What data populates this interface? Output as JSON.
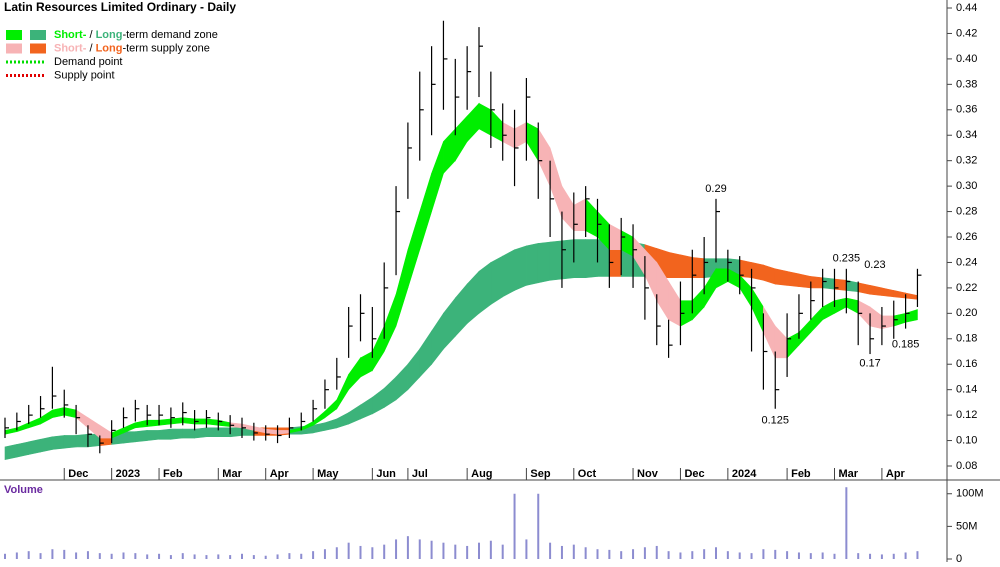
{
  "chart_data": {
    "type": "hlc",
    "title": "Latin Resources Limited Ordinary - Daily",
    "categories": [
      null,
      null,
      null,
      null,
      null,
      "Dec",
      null,
      null,
      null,
      "2023",
      null,
      null,
      null,
      "Feb",
      null,
      null,
      null,
      null,
      "Mar",
      null,
      null,
      null,
      "Apr",
      null,
      null,
      null,
      "May",
      null,
      null,
      null,
      null,
      "Jun",
      null,
      null,
      "Jul",
      null,
      null,
      null,
      null,
      "Aug",
      null,
      null,
      null,
      null,
      "Sep",
      null,
      null,
      null,
      "Oct",
      null,
      null,
      null,
      null,
      "Nov",
      null,
      null,
      null,
      "Dec",
      null,
      null,
      null,
      "2024",
      null,
      null,
      null,
      null,
      "Feb",
      null,
      null,
      null,
      "Mar",
      null,
      null,
      null,
      "Apr",
      null,
      null,
      null
    ],
    "high": [
      0.118,
      0.122,
      0.128,
      0.135,
      0.158,
      0.14,
      0.128,
      0.112,
      0.104,
      0.116,
      0.126,
      0.132,
      0.128,
      0.128,
      0.126,
      0.13,
      0.124,
      0.124,
      0.122,
      0.12,
      0.118,
      0.114,
      0.112,
      0.112,
      0.118,
      0.122,
      0.132,
      0.148,
      0.165,
      0.205,
      0.215,
      0.205,
      0.24,
      0.3,
      0.35,
      0.39,
      0.41,
      0.43,
      0.4,
      0.41,
      0.425,
      0.39,
      0.365,
      0.36,
      0.385,
      0.35,
      0.32,
      0.28,
      0.295,
      0.3,
      0.29,
      0.27,
      0.275,
      0.27,
      0.245,
      0.215,
      0.195,
      0.225,
      0.25,
      0.26,
      0.29,
      0.25,
      0.245,
      0.235,
      0.2,
      0.17,
      0.2,
      0.215,
      0.225,
      0.235,
      0.235,
      0.235,
      0.225,
      0.2,
      0.205,
      0.21,
      0.215,
      0.235
    ],
    "low": [
      0.102,
      0.108,
      0.113,
      0.118,
      0.125,
      0.118,
      0.105,
      0.095,
      0.09,
      0.098,
      0.11,
      0.115,
      0.112,
      0.112,
      0.11,
      0.112,
      0.108,
      0.11,
      0.108,
      0.105,
      0.102,
      0.1,
      0.1,
      0.098,
      0.102,
      0.108,
      0.115,
      0.125,
      0.14,
      0.165,
      0.178,
      0.165,
      0.18,
      0.23,
      0.29,
      0.32,
      0.34,
      0.36,
      0.34,
      0.36,
      0.37,
      0.33,
      0.32,
      0.3,
      0.32,
      0.29,
      0.26,
      0.22,
      0.24,
      0.26,
      0.24,
      0.22,
      0.23,
      0.22,
      0.195,
      0.175,
      0.165,
      0.175,
      0.2,
      0.215,
      0.24,
      0.225,
      0.215,
      0.17,
      0.14,
      0.125,
      0.15,
      0.18,
      0.195,
      0.205,
      0.205,
      0.2,
      0.175,
      0.168,
      0.175,
      0.18,
      0.188,
      0.205
    ],
    "close": [
      0.11,
      0.115,
      0.12,
      0.125,
      0.135,
      0.128,
      0.118,
      0.105,
      0.098,
      0.108,
      0.118,
      0.125,
      0.12,
      0.12,
      0.118,
      0.122,
      0.115,
      0.118,
      0.115,
      0.112,
      0.11,
      0.106,
      0.105,
      0.104,
      0.11,
      0.115,
      0.125,
      0.14,
      0.15,
      0.19,
      0.2,
      0.18,
      0.22,
      0.28,
      0.33,
      0.36,
      0.38,
      0.4,
      0.37,
      0.39,
      0.41,
      0.36,
      0.34,
      0.33,
      0.37,
      0.32,
      0.29,
      0.25,
      0.27,
      0.29,
      0.27,
      0.24,
      0.26,
      0.25,
      0.22,
      0.19,
      0.175,
      0.2,
      0.23,
      0.24,
      0.28,
      0.24,
      0.23,
      0.22,
      0.17,
      0.14,
      0.18,
      0.2,
      0.21,
      0.225,
      0.22,
      0.225,
      0.2,
      0.18,
      0.19,
      0.195,
      0.2,
      0.23
    ],
    "short_zone_lower": [
      0.105,
      0.107,
      0.11,
      0.113,
      0.118,
      0.12,
      0.118,
      0.11,
      0.102,
      0.102,
      0.106,
      0.11,
      0.111,
      0.112,
      0.113,
      0.114,
      0.113,
      0.113,
      0.112,
      0.111,
      0.11,
      0.108,
      0.106,
      0.105,
      0.106,
      0.108,
      0.112,
      0.118,
      0.125,
      0.14,
      0.15,
      0.155,
      0.17,
      0.19,
      0.22,
      0.25,
      0.28,
      0.31,
      0.32,
      0.335,
      0.345,
      0.34,
      0.335,
      0.33,
      0.335,
      0.32,
      0.3,
      0.275,
      0.265,
      0.265,
      0.26,
      0.25,
      0.25,
      0.245,
      0.23,
      0.21,
      0.195,
      0.19,
      0.195,
      0.205,
      0.22,
      0.225,
      0.22,
      0.205,
      0.185,
      0.165,
      0.165,
      0.175,
      0.185,
      0.195,
      0.2,
      0.205,
      0.2,
      0.19,
      0.188,
      0.19,
      0.193,
      0.195
    ],
    "short_zone_upper": [
      0.108,
      0.11,
      0.114,
      0.118,
      0.124,
      0.126,
      0.124,
      0.118,
      0.112,
      0.106,
      0.11,
      0.114,
      0.116,
      0.116,
      0.117,
      0.118,
      0.117,
      0.117,
      0.116,
      0.114,
      0.113,
      0.111,
      0.109,
      0.108,
      0.108,
      0.11,
      0.115,
      0.123,
      0.132,
      0.152,
      0.165,
      0.17,
      0.19,
      0.215,
      0.25,
      0.28,
      0.31,
      0.335,
      0.345,
      0.355,
      0.365,
      0.36,
      0.35,
      0.345,
      0.35,
      0.345,
      0.33,
      0.3,
      0.285,
      0.29,
      0.28,
      0.27,
      0.265,
      0.26,
      0.25,
      0.24,
      0.225,
      0.21,
      0.21,
      0.22,
      0.235,
      0.235,
      0.23,
      0.22,
      0.205,
      0.19,
      0.18,
      0.185,
      0.195,
      0.205,
      0.21,
      0.212,
      0.21,
      0.205,
      0.198,
      0.198,
      0.2,
      0.203
    ],
    "long_zone_lower": [
      0.085,
      0.087,
      0.089,
      0.091,
      0.093,
      0.094,
      0.095,
      0.095,
      0.096,
      0.097,
      0.098,
      0.099,
      0.1,
      0.101,
      0.101,
      0.102,
      0.102,
      0.103,
      0.103,
      0.103,
      0.104,
      0.104,
      0.104,
      0.104,
      0.105,
      0.105,
      0.106,
      0.108,
      0.11,
      0.113,
      0.117,
      0.121,
      0.126,
      0.132,
      0.14,
      0.15,
      0.16,
      0.172,
      0.182,
      0.192,
      0.2,
      0.207,
      0.213,
      0.218,
      0.222,
      0.224,
      0.226,
      0.227,
      0.228,
      0.228,
      0.229,
      0.229,
      0.229,
      0.229,
      0.229,
      0.228,
      0.228,
      0.228,
      0.228,
      0.228,
      0.229,
      0.229,
      0.229,
      0.228,
      0.226,
      0.223,
      0.222,
      0.221,
      0.22,
      0.22,
      0.219,
      0.218,
      0.217,
      0.215,
      0.214,
      0.213,
      0.212,
      0.211
    ],
    "long_zone_upper": [
      0.095,
      0.097,
      0.099,
      0.101,
      0.103,
      0.104,
      0.104,
      0.105,
      0.105,
      0.106,
      0.107,
      0.107,
      0.108,
      0.108,
      0.109,
      0.109,
      0.109,
      0.11,
      0.11,
      0.11,
      0.11,
      0.11,
      0.11,
      0.11,
      0.11,
      0.111,
      0.112,
      0.114,
      0.117,
      0.122,
      0.128,
      0.134,
      0.141,
      0.15,
      0.16,
      0.172,
      0.186,
      0.2,
      0.212,
      0.223,
      0.233,
      0.24,
      0.245,
      0.25,
      0.253,
      0.255,
      0.256,
      0.257,
      0.258,
      0.258,
      0.258,
      0.258,
      0.257,
      0.256,
      0.254,
      0.251,
      0.248,
      0.246,
      0.244,
      0.243,
      0.243,
      0.243,
      0.242,
      0.24,
      0.238,
      0.235,
      0.233,
      0.231,
      0.229,
      0.228,
      0.227,
      0.226,
      0.224,
      0.222,
      0.22,
      0.218,
      0.216,
      0.214
    ],
    "colors": {
      "short_demand": "#00ee00",
      "long_demand": "#3cb37a",
      "short_supply": "#f7b3b5",
      "long_supply": "#f2641e",
      "price": "#000000",
      "volume": "#8c8cd0",
      "demand_point": "#00dd00",
      "supply_point": "#e00000"
    },
    "ylim": [
      0.069,
      0.4463
    ],
    "yticks": [
      0.08,
      {
        "value": 0.1,
        "label": "0.10"
      },
      0.12,
      0.14,
      0.16,
      0.18,
      {
        "value": 0.2,
        "label": "0.20"
      },
      0.22,
      0.24,
      0.26,
      0.28,
      {
        "value": 0.3,
        "label": "0.30"
      },
      0.32,
      0.34,
      0.36,
      0.38,
      {
        "value": 0.4,
        "label": "0.40"
      },
      0.42,
      0.44
    ],
    "annotations": [
      {
        "index": 60,
        "value": 0.29,
        "position": "above"
      },
      {
        "index": 71,
        "value": 0.235,
        "position": "above"
      },
      {
        "index": 72,
        "value": 0.23,
        "position": "right"
      },
      {
        "index": 65,
        "value": 0.125,
        "position": "below"
      },
      {
        "index": 73,
        "value": 0.17,
        "position": "below"
      },
      {
        "index": 76,
        "value": 0.185,
        "position": "below"
      }
    ],
    "legend": [
      {
        "parts": [
          "Short-",
          " / ",
          "Long",
          "-term demand zone"
        ],
        "kind": "demand"
      },
      {
        "parts": [
          "Short-",
          " / ",
          "Long",
          "-term supply zone"
        ],
        "kind": "supply"
      },
      {
        "parts": [
          "Demand point"
        ],
        "kind": "demand_point"
      },
      {
        "parts": [
          "Supply point"
        ],
        "kind": "supply_point"
      }
    ],
    "volume": {
      "label": "Volume",
      "values": [
        8,
        10,
        12,
        9,
        15,
        14,
        10,
        12,
        9,
        8,
        10,
        9,
        7,
        8,
        6,
        9,
        7,
        6,
        7,
        6,
        8,
        6,
        5,
        7,
        9,
        8,
        12,
        15,
        18,
        25,
        20,
        18,
        22,
        30,
        35,
        30,
        28,
        25,
        22,
        20,
        25,
        28,
        22,
        100,
        30,
        100,
        25,
        20,
        22,
        18,
        15,
        14,
        12,
        15,
        18,
        20,
        12,
        10,
        12,
        15,
        18,
        12,
        10,
        9,
        15,
        14,
        12,
        10,
        9,
        10,
        8,
        110,
        9,
        8,
        7,
        8,
        10,
        12
      ],
      "ylim": [
        0,
        118
      ],
      "yticks": [
        {
          "value": 0,
          "label": "0"
        },
        {
          "value": 50,
          "label": "50M"
        },
        {
          "value": 100,
          "label": "100M"
        }
      ]
    }
  }
}
